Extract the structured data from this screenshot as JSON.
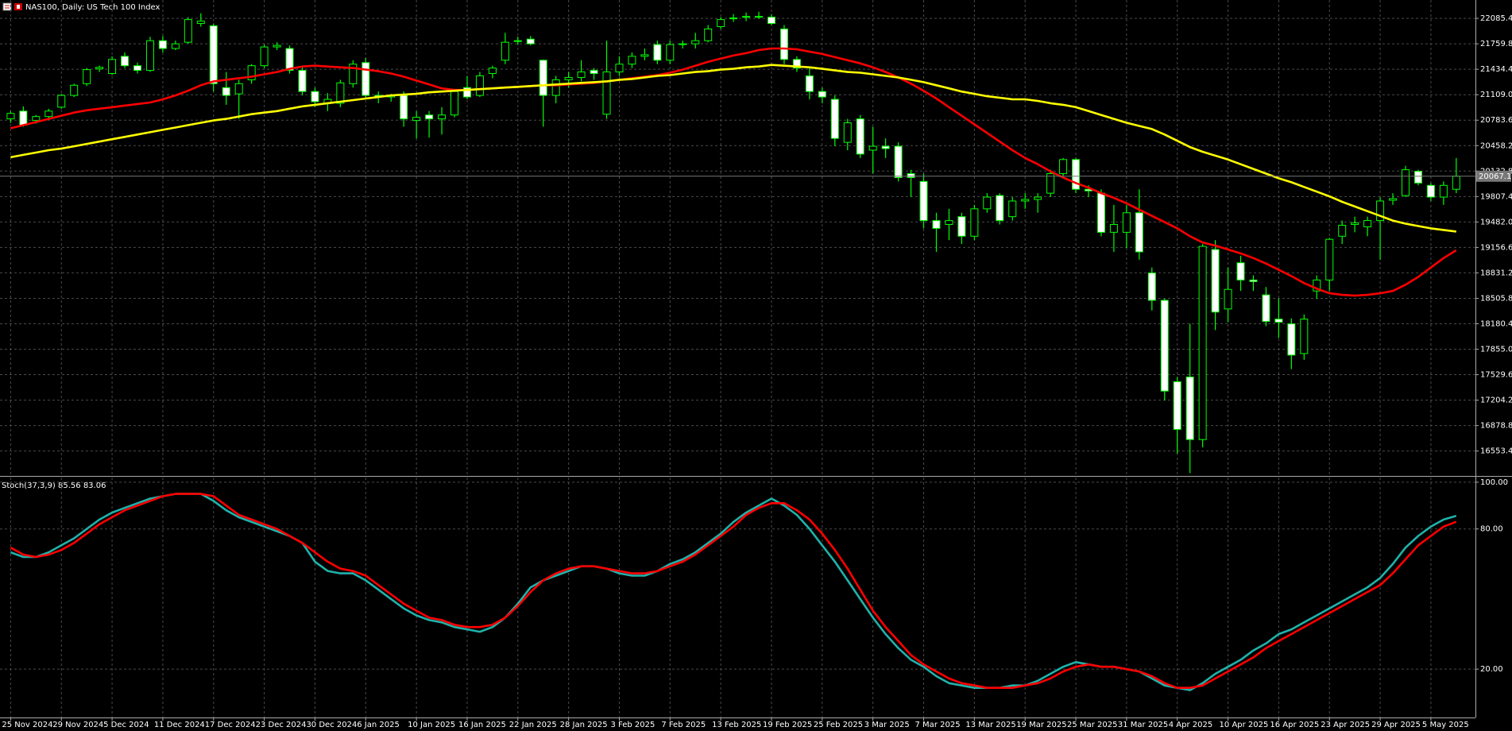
{
  "chart_data": [
    {
      "type": "candlestick",
      "title": "NAS100, Daily: US Tech 100 Index",
      "categories": [
        "25 Nov 2024",
        null,
        null,
        null,
        "29 Nov 2024",
        null,
        null,
        null,
        "5 Dec 2024",
        null,
        null,
        null,
        "11 Dec 2024",
        null,
        null,
        null,
        "17 Dec 2024",
        null,
        null,
        null,
        "23 Dec 2024",
        null,
        null,
        null,
        "30 Dec 2024",
        null,
        null,
        null,
        "6 Jan 2025",
        null,
        null,
        null,
        "10 Jan 2025",
        null,
        null,
        null,
        "16 Jan 2025",
        null,
        null,
        null,
        "22 Jan 2025",
        null,
        null,
        null,
        "28 Jan 2025",
        null,
        null,
        null,
        "3 Feb 2025",
        null,
        null,
        null,
        "7 Feb 2025",
        null,
        null,
        null,
        "13 Feb 2025",
        null,
        null,
        null,
        "19 Feb 2025",
        null,
        null,
        null,
        "25 Feb 2025",
        null,
        null,
        null,
        "3 Mar 2025",
        null,
        null,
        null,
        "7 Mar 2025",
        null,
        null,
        null,
        "13 Mar 2025",
        null,
        null,
        null,
        "19 Mar 2025",
        null,
        null,
        null,
        "25 Mar 2025",
        null,
        null,
        null,
        "31 Mar 2025",
        null,
        null,
        null,
        "4 Apr 2025",
        null,
        null,
        null,
        "10 Apr 2025",
        null,
        null,
        null,
        "16 Apr 2025",
        null,
        null,
        null,
        "23 Apr 2025",
        null,
        null,
        null,
        "29 Apr 2025",
        null,
        null,
        null,
        "5 May 2025",
        null,
        null
      ],
      "open": [
        20800,
        20900,
        20780,
        20830,
        20950,
        21100,
        21250,
        21440,
        21380,
        21600,
        21480,
        21420,
        21800,
        21700,
        21780,
        22020,
        21990,
        21200,
        21120,
        21300,
        21480,
        21720,
        21700,
        21420,
        21150,
        21000,
        21000,
        21250,
        21520,
        21100,
        21080,
        21100,
        20780,
        20850,
        20800,
        20850,
        21200,
        21100,
        21380,
        21550,
        21800,
        21820,
        21550,
        21100,
        21300,
        21330,
        21420,
        20860,
        21400,
        21500,
        21600,
        21750,
        21550,
        21750,
        21760,
        21800,
        21980,
        22080,
        22100,
        22100,
        22100,
        21950,
        21560,
        21350,
        21150,
        21050,
        20500,
        20800,
        20400,
        20450,
        20450,
        20100,
        20000,
        19500,
        19450,
        19550,
        19300,
        19650,
        19820,
        19550,
        19750,
        19770,
        19850,
        20100,
        20280,
        19900,
        19850,
        19350,
        19350,
        19600,
        18830,
        18480,
        17440,
        17500,
        16700,
        19130,
        18370,
        18960,
        18740,
        18550,
        18240,
        18180,
        17800,
        18600,
        18740,
        19300,
        19450,
        19420,
        19500,
        19760,
        19820,
        20130,
        19950,
        19800,
        19900
      ],
      "high": [
        20900,
        20960,
        20850,
        20930,
        21120,
        21250,
        21450,
        21480,
        21600,
        21650,
        21520,
        21850,
        21860,
        21800,
        22100,
        22150,
        22020,
        21400,
        21300,
        21500,
        21750,
        21780,
        21740,
        21480,
        21200,
        21130,
        21300,
        21550,
        21580,
        21150,
        21120,
        21150,
        20900,
        20900,
        20950,
        21180,
        21350,
        21400,
        21480,
        21900,
        21850,
        21860,
        21560,
        21350,
        21400,
        21550,
        21450,
        21800,
        21600,
        21650,
        21700,
        21800,
        21800,
        21800,
        21900,
        22000,
        22100,
        22140,
        22160,
        22170,
        22140,
        22000,
        21600,
        21450,
        21200,
        21100,
        20800,
        20850,
        20700,
        20550,
        20500,
        20150,
        20100,
        19600,
        19650,
        19600,
        19700,
        19850,
        19850,
        19800,
        19850,
        19850,
        20150,
        20300,
        20300,
        19950,
        19900,
        19700,
        19700,
        19900,
        18900,
        18500,
        17500,
        18180,
        19200,
        19250,
        18900,
        19050,
        18800,
        18650,
        18500,
        18250,
        18300,
        18800,
        19280,
        19500,
        19550,
        19550,
        19800,
        19850,
        20200,
        20150,
        19980,
        20000,
        20300
      ],
      "low": [
        20750,
        20700,
        20740,
        20800,
        20930,
        21080,
        21220,
        21400,
        21360,
        21450,
        21380,
        21400,
        21650,
        21680,
        21760,
        21980,
        21150,
        20980,
        20800,
        21250,
        21450,
        21680,
        21380,
        21100,
        20950,
        20900,
        20950,
        21200,
        21050,
        21000,
        21020,
        20700,
        20550,
        20560,
        20600,
        20820,
        21050,
        21080,
        21320,
        21500,
        21750,
        21740,
        20700,
        21000,
        21200,
        21280,
        21300,
        20800,
        21350,
        21450,
        21550,
        21500,
        21500,
        21700,
        21700,
        21780,
        21950,
        22040,
        22050,
        22080,
        22000,
        21500,
        21400,
        21050,
        21000,
        20450,
        20400,
        20300,
        20100,
        20300,
        20000,
        19800,
        19400,
        19100,
        19250,
        19200,
        19250,
        19600,
        19450,
        19500,
        19650,
        19600,
        19800,
        20050,
        19850,
        19800,
        19300,
        19100,
        19150,
        19000,
        18350,
        17200,
        16520,
        16270,
        16600,
        18100,
        18200,
        18600,
        18600,
        18150,
        18000,
        17600,
        17720,
        18500,
        18600,
        19200,
        19350,
        19300,
        19000,
        19700,
        19800,
        19950,
        19750,
        19700,
        19850
      ],
      "close": [
        20870,
        20720,
        20830,
        20900,
        21100,
        21230,
        21430,
        21460,
        21560,
        21480,
        21420,
        21800,
        21700,
        21760,
        22070,
        22050,
        21250,
        21100,
        21250,
        21480,
        21720,
        21740,
        21420,
        21150,
        21020,
        21050,
        21260,
        21500,
        21100,
        21080,
        21100,
        20800,
        20820,
        20800,
        20850,
        21150,
        21080,
        21350,
        21450,
        21780,
        21800,
        21760,
        21100,
        21300,
        21330,
        21400,
        21380,
        21400,
        21500,
        21600,
        21620,
        21550,
        21750,
        21760,
        21800,
        21950,
        22070,
        22090,
        22110,
        22110,
        22020,
        21560,
        21450,
        21150,
        21080,
        20550,
        20750,
        20350,
        20450,
        20420,
        20050,
        20050,
        19500,
        19400,
        19500,
        19300,
        19650,
        19800,
        19500,
        19750,
        19770,
        19800,
        20100,
        20280,
        19900,
        19880,
        19350,
        19450,
        19600,
        19100,
        18480,
        17320,
        16830,
        16700,
        19170,
        18330,
        18620,
        18740,
        18720,
        18210,
        18200,
        17780,
        18240,
        18740,
        19260,
        19440,
        19470,
        19500,
        19750,
        19780,
        20150,
        19980,
        19800,
        19950,
        20067.1
      ],
      "up_color": "#000000",
      "down_color": "#ffffff",
      "wick_color": "#00ff00",
      "series": [
        {
          "color": "#ff0000",
          "values": [
            20680,
            20720,
            20760,
            20800,
            20840,
            20880,
            20910,
            20930,
            20950,
            20970,
            20990,
            21010,
            21050,
            21100,
            21160,
            21230,
            21280,
            21300,
            21320,
            21340,
            21370,
            21400,
            21440,
            21470,
            21480,
            21470,
            21460,
            21450,
            21430,
            21410,
            21380,
            21340,
            21290,
            21240,
            21190,
            21170,
            21170,
            21180,
            21190,
            21200,
            21210,
            21220,
            21230,
            21230,
            21240,
            21250,
            21260,
            21280,
            21300,
            21320,
            21340,
            21360,
            21390,
            21430,
            21480,
            21530,
            21570,
            21610,
            21640,
            21680,
            21700,
            21700,
            21690,
            21660,
            21630,
            21590,
            21550,
            21510,
            21460,
            21400,
            21330,
            21250,
            21160,
            21060,
            20950,
            20840,
            20730,
            20620,
            20510,
            20400,
            20300,
            20220,
            20130,
            20050,
            19980,
            19920,
            19850,
            19790,
            19720,
            19640,
            19560,
            19480,
            19400,
            19300,
            19220,
            19180,
            19130,
            19080,
            19020,
            18950,
            18870,
            18790,
            18700,
            18630,
            18570,
            18550,
            18540,
            18550,
            18570,
            18600,
            18680,
            18780,
            18900,
            19020,
            19120
          ]
        },
        {
          "color": "#ffff00",
          "values": [
            20310,
            20340,
            20370,
            20400,
            20420,
            20450,
            20480,
            20510,
            20540,
            20570,
            20600,
            20630,
            20660,
            20690,
            20720,
            20750,
            20780,
            20800,
            20830,
            20860,
            20880,
            20900,
            20930,
            20960,
            20980,
            21000,
            21020,
            21040,
            21060,
            21080,
            21100,
            21110,
            21120,
            21140,
            21150,
            21160,
            21170,
            21180,
            21190,
            21200,
            21210,
            21220,
            21230,
            21240,
            21250,
            21260,
            21270,
            21280,
            21300,
            21310,
            21330,
            21350,
            21360,
            21380,
            21400,
            21410,
            21430,
            21440,
            21460,
            21470,
            21490,
            21480,
            21470,
            21460,
            21440,
            21420,
            21400,
            21390,
            21370,
            21350,
            21330,
            21300,
            21270,
            21230,
            21190,
            21150,
            21120,
            21090,
            21070,
            21050,
            21050,
            21030,
            21000,
            20980,
            20950,
            20900,
            20850,
            20800,
            20750,
            20710,
            20670,
            20600,
            20520,
            20440,
            20380,
            20330,
            20280,
            20220,
            20160,
            20100,
            20040,
            19990,
            19930,
            19870,
            19810,
            19740,
            19680,
            19620,
            19560,
            19500,
            19460,
            19430,
            19400,
            19380,
            19360
          ]
        }
      ],
      "last_price": 20067.1,
      "ylim": [
        16245,
        22320
      ],
      "yticks": [
        22085.4,
        21759.8,
        21434.4,
        {
          "value": 21109,
          "label": "21109.0"
        },
        20783.6,
        20458.2,
        20132.8,
        19807.4,
        {
          "value": 19482,
          "label": "19482.0"
        },
        19156.6,
        18831.2,
        18505.8,
        18180.4,
        {
          "value": 17855,
          "label": "17855.0"
        },
        17529.6,
        17204.2,
        16878.8,
        16553.4
      ],
      "grid": true
    },
    {
      "type": "line",
      "title": "Stoch(37,3,9) 85.56 83.06",
      "series": [
        {
          "color": "#20b2aa",
          "values": [
            70,
            68,
            68,
            70,
            73,
            76,
            80,
            84,
            87,
            89,
            91,
            93,
            94,
            95,
            95,
            95,
            92,
            88,
            85,
            83,
            81,
            79,
            77,
            74,
            66,
            62,
            61,
            61,
            58,
            54,
            50,
            46,
            43,
            41,
            40,
            38,
            37,
            36,
            38,
            42,
            48,
            55,
            58,
            60,
            62,
            64,
            64,
            63,
            61,
            60,
            60,
            62,
            65,
            67,
            70,
            74,
            78,
            83,
            87,
            90,
            93,
            90,
            86,
            80,
            73,
            66,
            58,
            50,
            42,
            35,
            29,
            24,
            21,
            17,
            14,
            13,
            12,
            12,
            12,
            13,
            13,
            15,
            18,
            21,
            23,
            22,
            21,
            21,
            20,
            19,
            16,
            13,
            12,
            11,
            14,
            18,
            21,
            24,
            28,
            31,
            35,
            37,
            40,
            43,
            46,
            49,
            52,
            55,
            59,
            65,
            72,
            77,
            81,
            84,
            85.56
          ]
        },
        {
          "color": "#ff0000",
          "values": [
            72,
            69,
            68,
            69,
            71,
            74,
            78,
            82,
            85,
            88,
            90,
            92,
            94,
            95,
            95,
            95,
            94,
            90,
            86,
            84,
            82,
            80,
            77,
            74,
            70,
            66,
            63,
            62,
            60,
            56,
            52,
            48,
            45,
            42,
            41,
            39,
            38,
            38,
            39,
            42,
            47,
            53,
            58,
            61,
            63,
            64,
            64,
            63,
            62,
            61,
            61,
            62,
            64,
            66,
            69,
            73,
            77,
            81,
            86,
            89,
            91,
            91,
            88,
            84,
            78,
            71,
            63,
            54,
            45,
            38,
            32,
            26,
            22,
            19,
            16,
            14,
            13,
            12,
            12,
            12,
            13,
            14,
            16,
            19,
            21,
            22,
            21,
            21,
            20,
            19,
            17,
            14,
            12,
            12,
            13,
            16,
            19,
            22,
            25,
            29,
            32,
            35,
            38,
            41,
            44,
            47,
            50,
            53,
            56,
            61,
            67,
            73,
            77,
            81,
            83.06
          ]
        }
      ],
      "ylim": [
        -0.7,
        102
      ],
      "yticks": [
        {
          "value": 100,
          "label": "100.00"
        },
        {
          "value": 80,
          "label": "80.00"
        },
        {
          "value": 20,
          "label": "20.00"
        }
      ],
      "grid": true
    }
  ]
}
